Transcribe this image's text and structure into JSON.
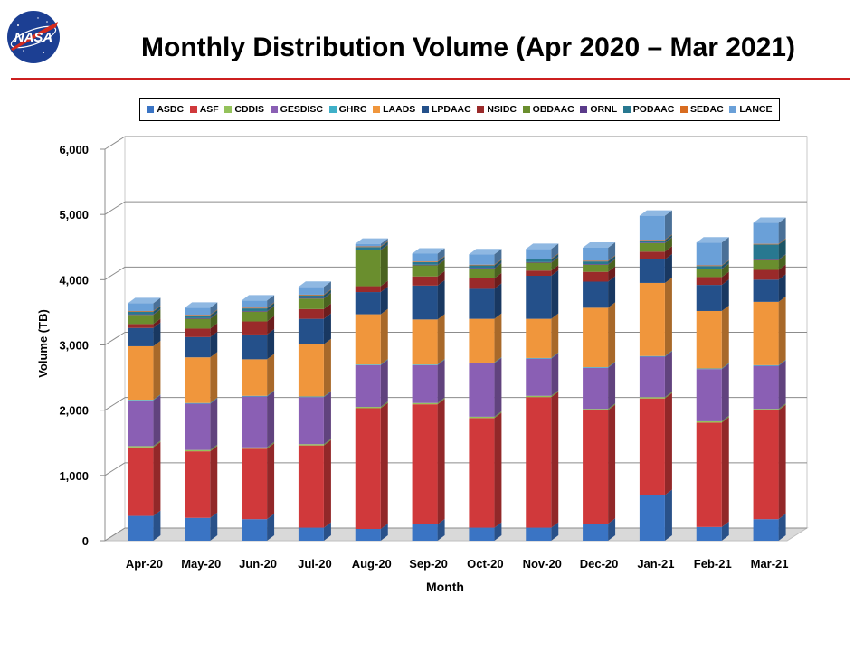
{
  "title": "Monthly Distribution Volume (Apr 2020 – Mar 2021)",
  "logo_text": "NASA",
  "colors": {
    "rule": "#cc1f1f",
    "ASDC": "#3a74c4",
    "ASF": "#d0393b",
    "CDDIS": "#94c25b",
    "GESDISC": "#8a5fb4",
    "GHRC": "#3fb0c8",
    "LAADS": "#f0963c",
    "LPDAAC": "#24508a",
    "NSIDC": "#9a2a2a",
    "OBDAAC": "#6a8e2e",
    "ORNL": "#5a3a8a",
    "PODAAC": "#287890",
    "SEDAC": "#d86c20",
    "LANCE": "#6aa0d8"
  },
  "chart_data": {
    "type": "bar",
    "stacked": true,
    "title": "Monthly Distribution Volume (Apr 2020 – Mar 2021)",
    "xlabel": "Month",
    "ylabel": "Volume (TB)",
    "ylim": [
      0,
      6000
    ],
    "yticks": [
      0,
      1000,
      2000,
      3000,
      4000,
      5000,
      6000
    ],
    "ytick_labels": [
      "0",
      "1,000",
      "2,000",
      "3,000",
      "4,000",
      "5,000",
      "6,000"
    ],
    "grid": true,
    "legend_position": "top",
    "categories": [
      "Apr-20",
      "May-20",
      "Jun-20",
      "Jul-20",
      "Aug-20",
      "Sep-20",
      "Oct-20",
      "Nov-20",
      "Dec-20",
      "Jan-21",
      "Feb-21",
      "Mar-21"
    ],
    "series": [
      {
        "name": "ASDC",
        "values": [
          380,
          350,
          330,
          200,
          180,
          250,
          200,
          200,
          260,
          700,
          210,
          330
        ]
      },
      {
        "name": "ASF",
        "values": [
          1050,
          1020,
          1080,
          1260,
          1850,
          1840,
          1680,
          2000,
          1740,
          1480,
          1600,
          1670
        ]
      },
      {
        "name": "CDDIS",
        "values": [
          20,
          20,
          20,
          20,
          20,
          20,
          20,
          20,
          20,
          20,
          20,
          20
        ]
      },
      {
        "name": "GESDISC",
        "values": [
          700,
          710,
          780,
          720,
          640,
          580,
          820,
          570,
          630,
          620,
          800,
          660
        ]
      },
      {
        "name": "GHRC",
        "values": [
          10,
          10,
          10,
          10,
          10,
          10,
          10,
          10,
          10,
          10,
          10,
          10
        ]
      },
      {
        "name": "LAADS",
        "values": [
          820,
          700,
          560,
          800,
          770,
          690,
          670,
          600,
          910,
          1120,
          880,
          970
        ]
      },
      {
        "name": "LPDAAC",
        "values": [
          280,
          310,
          380,
          390,
          340,
          520,
          460,
          660,
          400,
          360,
          400,
          340
        ]
      },
      {
        "name": "NSIDC",
        "values": [
          60,
          130,
          200,
          150,
          90,
          140,
          160,
          80,
          150,
          120,
          120,
          150
        ]
      },
      {
        "name": "OBDAAC",
        "values": [
          140,
          150,
          150,
          160,
          550,
          170,
          150,
          120,
          110,
          130,
          120,
          150
        ]
      },
      {
        "name": "ORNL",
        "values": [
          10,
          10,
          10,
          10,
          10,
          10,
          10,
          10,
          10,
          10,
          10,
          10
        ]
      },
      {
        "name": "PODAAC",
        "values": [
          40,
          40,
          40,
          40,
          40,
          40,
          40,
          40,
          40,
          30,
          40,
          230
        ]
      },
      {
        "name": "SEDAC",
        "values": [
          10,
          10,
          10,
          10,
          10,
          10,
          10,
          10,
          10,
          10,
          10,
          10
        ]
      },
      {
        "name": "LANCE",
        "values": [
          120,
          110,
          110,
          120,
          40,
          120,
          160,
          150,
          200,
          370,
          350,
          320
        ]
      }
    ]
  }
}
